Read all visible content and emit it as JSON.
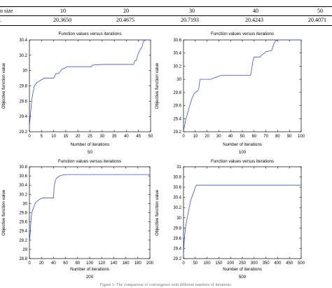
{
  "table": {
    "header_label": "n size",
    "header_values": [
      "10",
      "20",
      "30",
      "40",
      "50"
    ],
    "row_label": ".",
    "row_values": [
      "20.3650",
      "20.4675",
      "20.7193",
      "20.4243",
      "20.4071"
    ]
  },
  "caption": "Figure 1: The comparison of convergence with different numbers of iterations.",
  "colors": {
    "line": "#3b4fd0",
    "axis": "#000000",
    "frame": "#000000"
  },
  "chart_data": [
    {
      "type": "line",
      "title": "Function values versus iterations",
      "xlabel": "Number of iterations",
      "ylabel": "Objective function value",
      "sublabel": "50",
      "xlim": [
        0,
        50
      ],
      "ylim": [
        29.2,
        30.4
      ],
      "xticks": [
        0,
        5,
        10,
        15,
        20,
        25,
        30,
        35,
        40,
        45,
        50
      ],
      "yticks": [
        29.2,
        29.4,
        29.6,
        29.8,
        30,
        30.2,
        30.4
      ],
      "ytick_labels": [
        "29.2",
        "29.4",
        "29.6",
        "29.8",
        "30",
        "30.2",
        "30.4"
      ],
      "grid": false,
      "series": [
        {
          "x": [
            0,
            0.4,
            0.8,
            1,
            1.4,
            1.8,
            2,
            2.6,
            3,
            4,
            5,
            6,
            10,
            11,
            12,
            13,
            13.5,
            14.5,
            15.5,
            25.5,
            26,
            30,
            43,
            43.5,
            44,
            45,
            45.5,
            46,
            46.5,
            47,
            48,
            50
          ],
          "y": [
            29.27,
            29.42,
            29.55,
            29.62,
            29.7,
            29.76,
            29.8,
            29.82,
            29.84,
            29.86,
            29.88,
            29.9,
            29.9,
            29.96,
            29.96,
            30.0,
            30.02,
            30.03,
            30.05,
            30.05,
            30.07,
            30.08,
            30.08,
            30.13,
            30.13,
            30.23,
            30.26,
            30.29,
            30.31,
            30.38,
            30.4,
            30.4
          ]
        }
      ]
    },
    {
      "type": "line",
      "title": "Function values versus iterations",
      "xlabel": "Number of iterations",
      "ylabel": "Objective function value",
      "sublabel": "100",
      "xlim": [
        0,
        100
      ],
      "ylim": [
        29.2,
        30.6
      ],
      "xticks": [
        0,
        10,
        20,
        30,
        40,
        50,
        60,
        70,
        80,
        90,
        100
      ],
      "yticks": [
        29.2,
        29.4,
        29.6,
        29.8,
        30,
        30.2,
        30.4,
        30.6
      ],
      "ytick_labels": [
        "29.2",
        "29.4",
        "29.6",
        "29.8",
        "30",
        "30.2",
        "30.4",
        "30.6"
      ],
      "grid": false,
      "series": [
        {
          "x": [
            0,
            1,
            2,
            3,
            4,
            5,
            6,
            7,
            8,
            9,
            10,
            12,
            13,
            14,
            15,
            23,
            26,
            29,
            32,
            57,
            58,
            59,
            60,
            65,
            67,
            69,
            70,
            75,
            76,
            77,
            78,
            80,
            100
          ],
          "y": [
            29.22,
            29.3,
            29.4,
            29.45,
            29.52,
            29.58,
            29.64,
            29.7,
            29.74,
            29.78,
            29.8,
            29.82,
            29.86,
            30.0,
            30.0,
            30.0,
            30.02,
            30.04,
            30.06,
            30.06,
            30.16,
            30.28,
            30.34,
            30.34,
            30.38,
            30.4,
            30.42,
            30.44,
            30.5,
            30.55,
            30.58,
            30.6,
            30.6
          ]
        }
      ]
    },
    {
      "type": "line",
      "title": "Function values versus iterations",
      "xlabel": "Number of iterations",
      "ylabel": "Objective function value",
      "sublabel": "200",
      "xlim": [
        0,
        200
      ],
      "ylim": [
        28.8,
        30.8
      ],
      "xticks": [
        0,
        20,
        40,
        60,
        80,
        100,
        120,
        140,
        160,
        180,
        200
      ],
      "yticks": [
        28.8,
        29,
        29.2,
        29.4,
        29.6,
        29.8,
        30,
        30.2,
        30.4,
        30.6,
        30.8
      ],
      "ytick_labels": [
        "28.8",
        "29",
        "29.2",
        "29.4",
        "29.6",
        "29.8",
        "30",
        "30.2",
        "30.4",
        "30.6",
        "30.8"
      ],
      "grid": false,
      "series": [
        {
          "x": [
            0,
            1,
            2,
            3,
            4,
            6,
            8,
            10,
            14,
            18,
            22,
            40,
            41,
            43,
            45,
            50,
            55,
            60,
            200
          ],
          "y": [
            29.15,
            29.3,
            29.5,
            29.7,
            29.8,
            29.88,
            29.95,
            30.02,
            30.06,
            30.1,
            30.12,
            30.12,
            30.35,
            30.5,
            30.55,
            30.6,
            30.62,
            30.63,
            30.63
          ]
        }
      ]
    },
    {
      "type": "line",
      "title": "Function values versus iterations",
      "xlabel": "Number of iterations",
      "ylabel": "Objective function value",
      "sublabel": "500",
      "xlim": [
        0,
        500
      ],
      "ylim": [
        29.2,
        31
      ],
      "xticks": [
        0,
        50,
        100,
        150,
        200,
        250,
        300,
        350,
        400,
        450,
        500
      ],
      "yticks": [
        29.2,
        29.4,
        29.6,
        29.8,
        30,
        30.2,
        30.4,
        30.6,
        30.8,
        31
      ],
      "ytick_labels": [
        "29.2",
        "29.4",
        "29.6",
        "29.8",
        "30",
        "30.2",
        "30.4",
        "30.6",
        "30.8",
        "31"
      ],
      "grid": false,
      "series": [
        {
          "x": [
            0,
            3,
            6,
            9,
            12,
            15,
            18,
            21,
            24,
            27,
            30,
            35,
            40,
            45,
            50,
            55,
            500
          ],
          "y": [
            29.28,
            29.55,
            29.7,
            29.82,
            29.9,
            29.98,
            30.05,
            30.12,
            30.2,
            30.26,
            30.33,
            30.4,
            30.46,
            30.52,
            30.6,
            30.64,
            30.64
          ]
        }
      ]
    }
  ]
}
